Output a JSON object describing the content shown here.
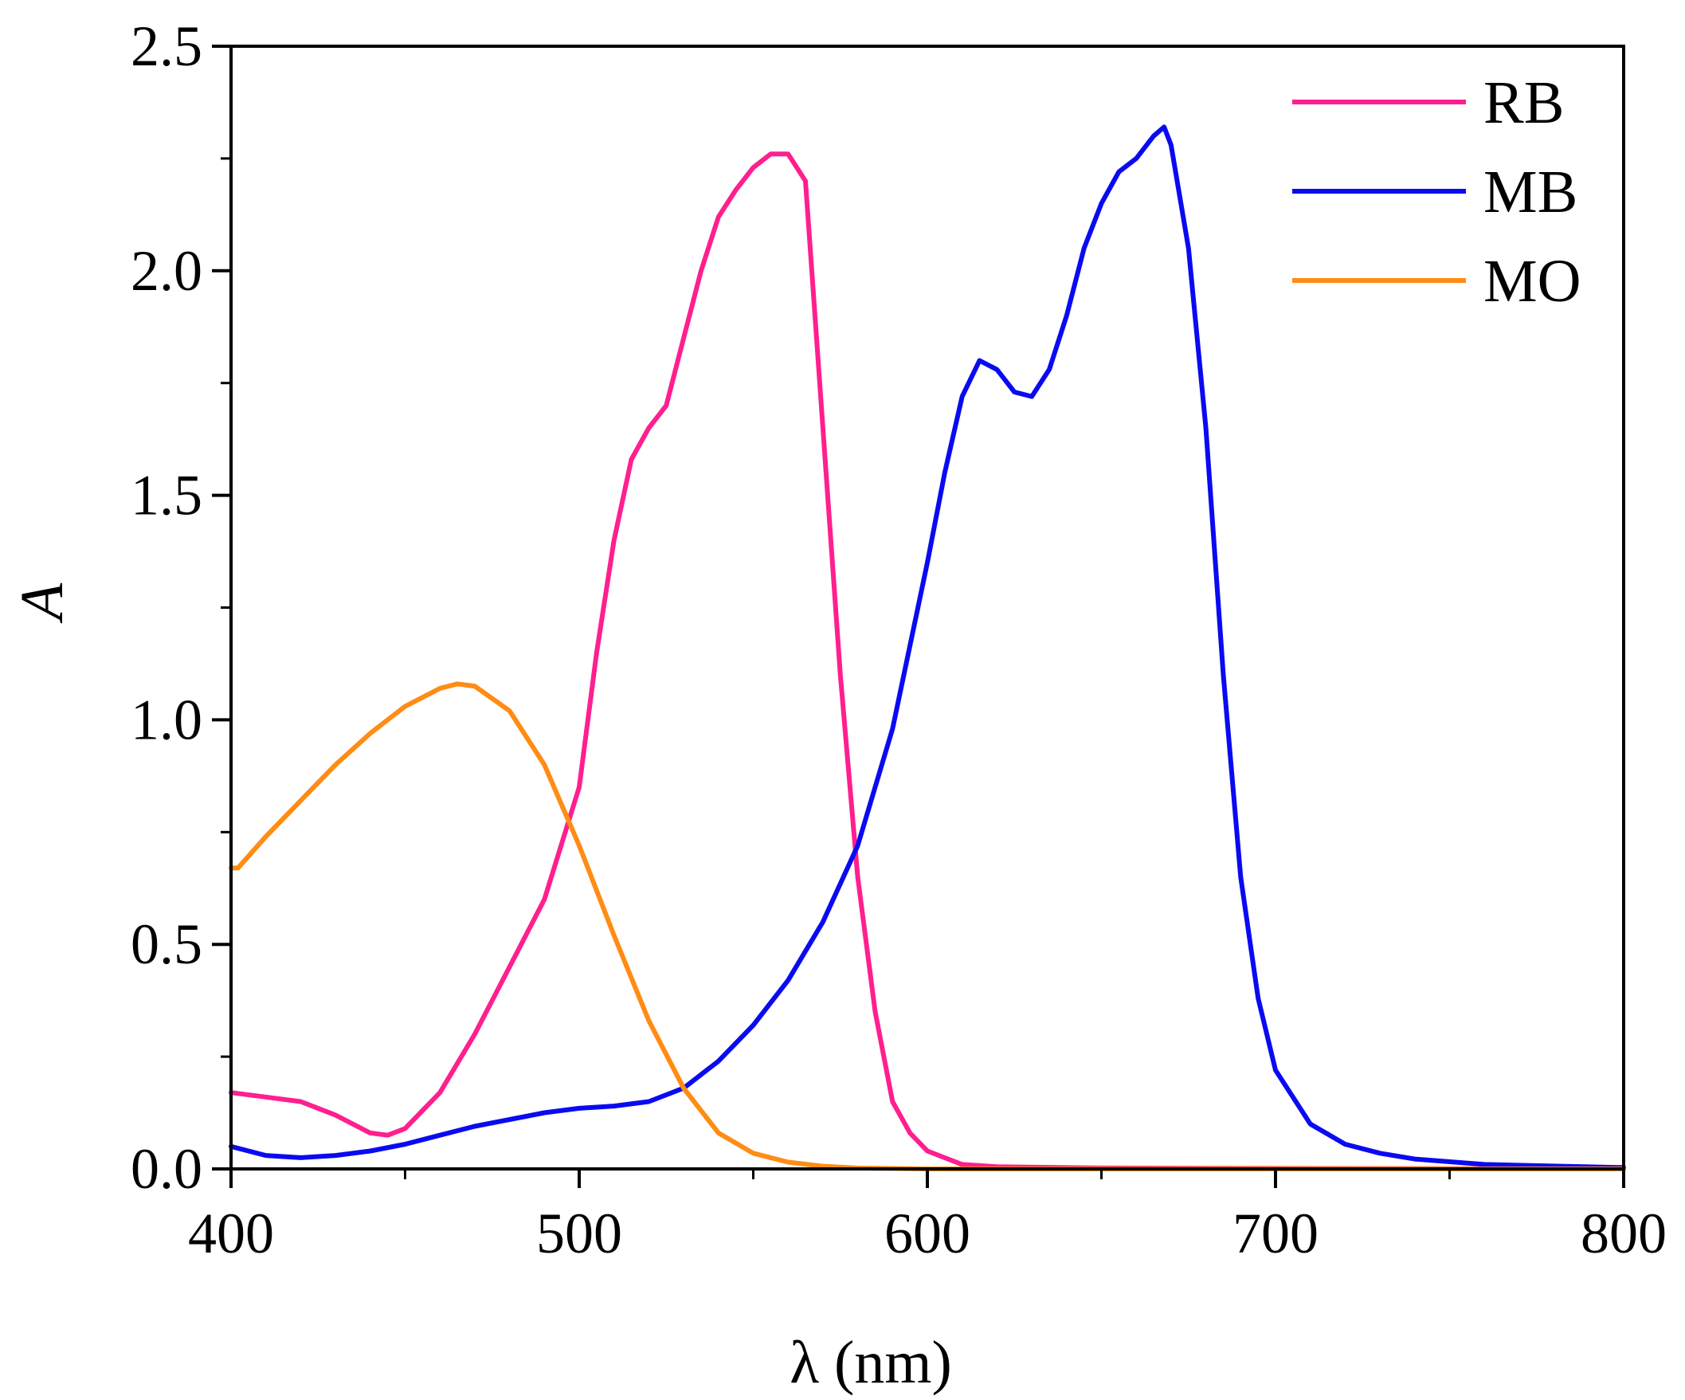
{
  "chart_data": {
    "type": "line",
    "title": "",
    "xlabel": "λ (nm)",
    "ylabel": "A",
    "xlim": [
      400,
      800
    ],
    "ylim": [
      0,
      2.5
    ],
    "x_ticks": [
      400,
      500,
      600,
      700,
      800
    ],
    "x_tick_labels": [
      "400",
      "500",
      "600",
      "700",
      "800"
    ],
    "y_ticks": [
      0,
      0.5,
      1.0,
      1.5,
      2.0,
      2.5
    ],
    "y_tick_labels": [
      "0.0",
      "0.5",
      "1.0",
      "1.5",
      "2.0",
      "2.5"
    ],
    "grid": false,
    "legend_position": "top-right",
    "series": [
      {
        "name": "RB",
        "color": "#ff1f8e",
        "x": [
          400,
          410,
          420,
          430,
          440,
          445,
          450,
          460,
          470,
          480,
          490,
          500,
          505,
          510,
          515,
          520,
          525,
          530,
          535,
          540,
          545,
          550,
          555,
          560,
          565,
          570,
          575,
          580,
          585,
          590,
          595,
          600,
          610,
          620,
          650,
          700,
          800
        ],
        "y": [
          0.17,
          0.16,
          0.15,
          0.12,
          0.08,
          0.075,
          0.09,
          0.17,
          0.3,
          0.45,
          0.6,
          0.85,
          1.15,
          1.4,
          1.58,
          1.65,
          1.7,
          1.85,
          2.0,
          2.12,
          2.18,
          2.23,
          2.26,
          2.26,
          2.2,
          1.65,
          1.1,
          0.65,
          0.35,
          0.15,
          0.08,
          0.04,
          0.01,
          0.005,
          0.002,
          0.001,
          0.0
        ]
      },
      {
        "name": "MB",
        "color": "#0a0af2",
        "x": [
          400,
          410,
          420,
          430,
          440,
          450,
          460,
          470,
          480,
          490,
          500,
          510,
          520,
          530,
          540,
          550,
          560,
          570,
          580,
          590,
          600,
          605,
          610,
          615,
          620,
          625,
          630,
          635,
          640,
          645,
          650,
          655,
          660,
          665,
          668,
          670,
          675,
          680,
          685,
          690,
          695,
          700,
          710,
          720,
          730,
          740,
          760,
          800
        ],
        "y": [
          0.05,
          0.03,
          0.025,
          0.03,
          0.04,
          0.055,
          0.075,
          0.095,
          0.11,
          0.125,
          0.135,
          0.14,
          0.15,
          0.18,
          0.24,
          0.32,
          0.42,
          0.55,
          0.72,
          0.98,
          1.35,
          1.55,
          1.72,
          1.8,
          1.78,
          1.73,
          1.72,
          1.78,
          1.9,
          2.05,
          2.15,
          2.22,
          2.25,
          2.3,
          2.32,
          2.28,
          2.05,
          1.65,
          1.1,
          0.65,
          0.38,
          0.22,
          0.1,
          0.055,
          0.035,
          0.022,
          0.01,
          0.003
        ]
      },
      {
        "name": "MO",
        "color": "#ff8c14",
        "x": [
          400,
          402,
          410,
          420,
          430,
          440,
          450,
          460,
          465,
          470,
          480,
          490,
          500,
          510,
          520,
          530,
          540,
          550,
          560,
          570,
          580,
          600,
          650,
          800
        ],
        "y": [
          0.67,
          0.67,
          0.74,
          0.82,
          0.9,
          0.97,
          1.03,
          1.07,
          1.08,
          1.075,
          1.02,
          0.9,
          0.72,
          0.52,
          0.33,
          0.18,
          0.08,
          0.035,
          0.015,
          0.006,
          0.002,
          0.0,
          0.0,
          0.0
        ]
      }
    ]
  }
}
